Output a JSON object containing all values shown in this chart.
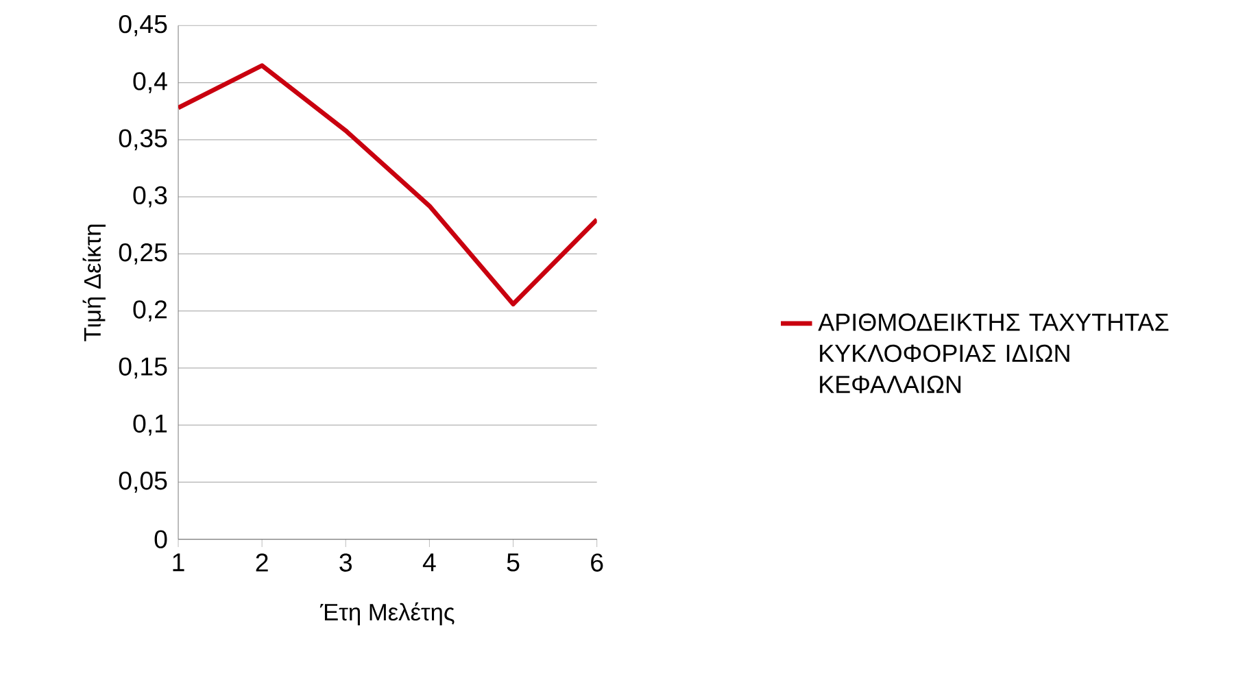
{
  "chart_data": {
    "type": "line",
    "xlabel": "Έτη Μελέτης",
    "ylabel": "Τιμή Δείκτη",
    "x": [
      1,
      2,
      3,
      4,
      5,
      6
    ],
    "series": [
      {
        "name": "ΑΡΙΘΜΟΔΕΙΚΤΗΣ ΤΑΧΥΤΗΤΑΣ ΚΥΚΛΟΦΟΡΙΑΣ ΙΔΙΩΝ ΚΕΦΑΛΑΙΩΝ",
        "color": "#c9000f",
        "values": [
          0.378,
          0.415,
          0.358,
          0.292,
          0.206,
          0.28
        ]
      }
    ],
    "xlim": [
      1,
      6
    ],
    "ylim": [
      0,
      0.45
    ],
    "xticks": [
      1,
      2,
      3,
      4,
      5,
      6
    ],
    "yticks": [
      {
        "value": 0,
        "label": "0"
      },
      {
        "value": 0.05,
        "label": "0,05"
      },
      {
        "value": 0.1,
        "label": "0,1"
      },
      {
        "value": 0.15,
        "label": "0,15"
      },
      {
        "value": 0.2,
        "label": "0,2"
      },
      {
        "value": 0.25,
        "label": "0,25"
      },
      {
        "value": 0.3,
        "label": "0,3"
      },
      {
        "value": 0.35,
        "label": "0,35"
      },
      {
        "value": 0.4,
        "label": "0,4"
      },
      {
        "value": 0.45,
        "label": "0,45"
      }
    ],
    "grid": "y",
    "legend": "right",
    "marker": "none"
  }
}
